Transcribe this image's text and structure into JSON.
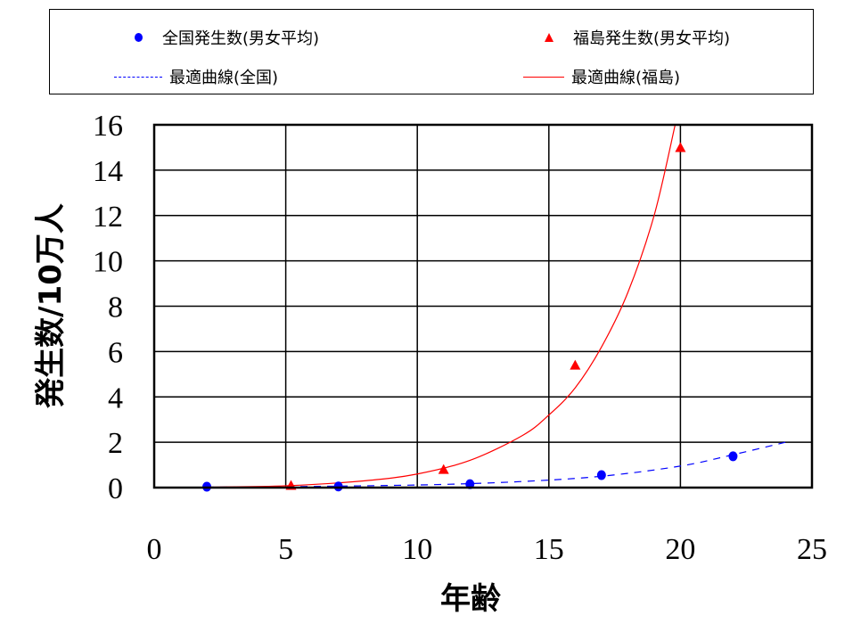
{
  "legend": {
    "items": [
      {
        "label": "全国発生数(男女平均)",
        "marker": "circle",
        "color": "#0000ff"
      },
      {
        "label": "福島発生数(男女平均)",
        "marker": "triangle",
        "color": "#ff0000"
      },
      {
        "label": "最適曲線(全国)",
        "marker": "dashed-line",
        "color": "#0000ff"
      },
      {
        "label": "最適曲線(福島)",
        "marker": "solid-line",
        "color": "#ff0000"
      }
    ]
  },
  "chart_data": {
    "type": "scatter",
    "title": "",
    "xlabel": "年齢",
    "ylabel": "発生数/10万人",
    "xlim": [
      0,
      25
    ],
    "ylim": [
      0,
      16
    ],
    "x_ticks": [
      "0",
      "5",
      "10",
      "15",
      "20",
      "25"
    ],
    "y_ticks": [
      "0",
      "2",
      "4",
      "6",
      "8",
      "10",
      "12",
      "14",
      "16"
    ],
    "grid": true,
    "legend_position": "top",
    "series": [
      {
        "name": "全国発生数(男女平均)",
        "type": "scatter",
        "marker": "circle",
        "color": "#0000ff",
        "x": [
          2,
          7,
          12,
          17,
          22
        ],
        "y": [
          0.04,
          0.05,
          0.15,
          0.55,
          1.38
        ]
      },
      {
        "name": "福島発生数(男女平均)",
        "type": "scatter",
        "marker": "triangle",
        "color": "#ff0000",
        "x": [
          5.2,
          11,
          16,
          20
        ],
        "y": [
          0.1,
          0.8,
          5.4,
          15.0
        ]
      },
      {
        "name": "最適曲線(全国)",
        "type": "line",
        "style": "dashed",
        "color": "#0000ff",
        "x": [
          2,
          5,
          8,
          11,
          14,
          17,
          20,
          22,
          24
        ],
        "y": [
          0.02,
          0.04,
          0.08,
          0.14,
          0.27,
          0.5,
          0.95,
          1.45,
          2.0
        ]
      },
      {
        "name": "最適曲線(福島)",
        "type": "line",
        "style": "solid",
        "color": "#ff0000",
        "x": [
          2,
          5,
          8,
          10,
          12,
          14,
          15,
          16,
          17,
          18,
          19,
          19.8
        ],
        "y": [
          0.02,
          0.08,
          0.3,
          0.6,
          1.2,
          2.3,
          3.2,
          4.4,
          6.2,
          8.6,
          12.0,
          16.0
        ]
      }
    ]
  }
}
